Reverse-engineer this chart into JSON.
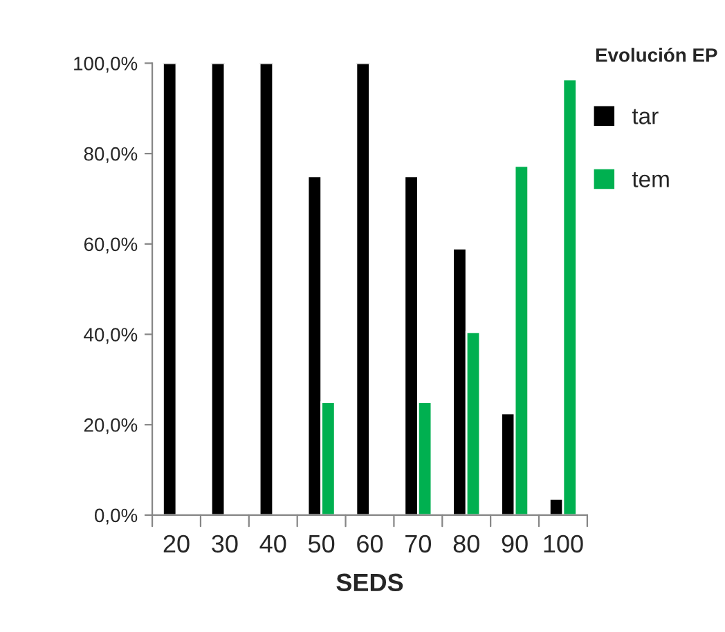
{
  "chart_data": {
    "type": "bar",
    "xlabel": "SEDS",
    "legend_title": "Evolución EP",
    "categories": [
      "20",
      "30",
      "40",
      "50",
      "60",
      "70",
      "80",
      "90",
      "100"
    ],
    "series": [
      {
        "name": "tar",
        "color": "#000000",
        "values": [
          100,
          100,
          100,
          75,
          100,
          75,
          59,
          22.5,
          3.6
        ]
      },
      {
        "name": "tem",
        "color": "#00b050",
        "values": [
          null,
          null,
          null,
          25,
          null,
          25,
          40.5,
          77.3,
          96.4
        ]
      }
    ],
    "ylim": [
      0,
      100
    ],
    "yticks": [
      {
        "value": 0,
        "label": "0,0%"
      },
      {
        "value": 20,
        "label": "20,0%"
      },
      {
        "value": 40,
        "label": "40,0%"
      },
      {
        "value": 60,
        "label": "60,0%"
      },
      {
        "value": 80,
        "label": "80,0%"
      },
      {
        "value": 100,
        "label": "100,0%"
      }
    ],
    "grid": false,
    "legend": "right"
  }
}
